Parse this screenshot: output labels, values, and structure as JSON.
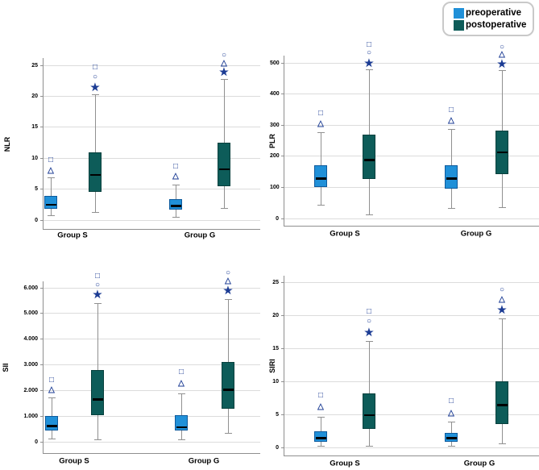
{
  "figure": {
    "background": "#ffffff"
  },
  "legend": {
    "position": "top-right",
    "items": [
      {
        "label": "preoperative",
        "color": "#2090d8",
        "border_color": "#0e5a9c"
      },
      {
        "label": "postoperative",
        "color": "#0d5c59",
        "border_color": "#07403d"
      }
    ]
  },
  "colors": {
    "outlier_symbol": "#1c3c94",
    "median_line": "#000000",
    "gridline": "#dcdcdc",
    "axis_line": "#8f8f8f",
    "whisker": "#909090",
    "text": "#000000"
  },
  "chart_data": [
    {
      "id": "nlr",
      "type": "boxplot",
      "ylabel": "NLR",
      "categories": [
        "Group S",
        "Group G"
      ],
      "series_names": [
        "preoperative",
        "postoperative"
      ],
      "ylim": [
        0,
        25
      ],
      "grid": true,
      "yticks": [
        {
          "value": 0,
          "label": "0"
        },
        {
          "value": 5,
          "label": "5"
        },
        {
          "value": 10,
          "label": "10"
        },
        {
          "value": 15,
          "label": "15"
        },
        {
          "value": 20,
          "label": "20"
        },
        {
          "value": 25,
          "label": "25"
        }
      ],
      "boxes": [
        {
          "category": "Group S",
          "series": "preoperative",
          "whisker_low": 0.7,
          "q1": 1.8,
          "median": 2.5,
          "q3": 3.9,
          "whisker_high": 6.9,
          "outliers": [
            {
              "symbol": "triangle",
              "value": 8.0
            },
            {
              "symbol": "square",
              "value": 9.6
            }
          ]
        },
        {
          "category": "Group S",
          "series": "postoperative",
          "whisker_low": 1.2,
          "q1": 4.6,
          "median": 7.3,
          "q3": 11.0,
          "whisker_high": 20.3,
          "outliers": [
            {
              "symbol": "star",
              "value": 21.5
            },
            {
              "symbol": "circle",
              "value": 23.0
            },
            {
              "symbol": "square",
              "value": 24.6
            }
          ]
        },
        {
          "category": "Group G",
          "series": "preoperative",
          "whisker_low": 0.4,
          "q1": 1.7,
          "median": 2.3,
          "q3": 3.4,
          "whisker_high": 5.7,
          "outliers": [
            {
              "symbol": "triangle",
              "value": 7.0
            },
            {
              "symbol": "square",
              "value": 8.6
            }
          ]
        },
        {
          "category": "Group G",
          "series": "postoperative",
          "whisker_low": 1.9,
          "q1": 5.5,
          "median": 8.2,
          "q3": 12.5,
          "whisker_high": 22.7,
          "outliers": [
            {
              "symbol": "star",
              "value": 23.9
            },
            {
              "symbol": "triangle",
              "value": 25.3
            },
            {
              "symbol": "circle",
              "value": 26.5
            }
          ]
        }
      ]
    },
    {
      "id": "plr",
      "type": "boxplot",
      "ylabel": "PLR",
      "categories": [
        "Group S",
        "Group G"
      ],
      "series_names": [
        "preoperative",
        "postoperative"
      ],
      "ylim": [
        0,
        500
      ],
      "grid": true,
      "yticks": [
        {
          "value": 0,
          "label": "0"
        },
        {
          "value": 100,
          "label": "100"
        },
        {
          "value": 200,
          "label": "200"
        },
        {
          "value": 300,
          "label": "300"
        },
        {
          "value": 400,
          "label": "400"
        },
        {
          "value": 500,
          "label": "500"
        }
      ],
      "boxes": [
        {
          "category": "Group S",
          "series": "preoperative",
          "whisker_low": 43,
          "q1": 100,
          "median": 128,
          "q3": 170,
          "whisker_high": 277,
          "outliers": [
            {
              "symbol": "triangle",
              "value": 303
            },
            {
              "symbol": "square",
              "value": 337
            }
          ]
        },
        {
          "category": "Group S",
          "series": "postoperative",
          "whisker_low": 12,
          "q1": 128,
          "median": 188,
          "q3": 270,
          "whisker_high": 478,
          "outliers": [
            {
              "symbol": "star",
              "value": 500
            },
            {
              "symbol": "circle",
              "value": 532
            },
            {
              "symbol": "square",
              "value": 556
            }
          ]
        },
        {
          "category": "Group G",
          "series": "preoperative",
          "whisker_low": 33,
          "q1": 97,
          "median": 128,
          "q3": 172,
          "whisker_high": 287,
          "outliers": [
            {
              "symbol": "triangle",
              "value": 313
            },
            {
              "symbol": "square",
              "value": 348
            }
          ]
        },
        {
          "category": "Group G",
          "series": "postoperative",
          "whisker_low": 35,
          "q1": 143,
          "median": 212,
          "q3": 282,
          "whisker_high": 475,
          "outliers": [
            {
              "symbol": "star",
              "value": 497
            },
            {
              "symbol": "triangle",
              "value": 525
            },
            {
              "symbol": "circle",
              "value": 548
            }
          ]
        }
      ]
    },
    {
      "id": "sii",
      "type": "boxplot",
      "ylabel": "SII",
      "categories": [
        "Group S",
        "Group G"
      ],
      "series_names": [
        "preoperative",
        "postoperative"
      ],
      "ylim": [
        0,
        6000
      ],
      "grid": true,
      "yticks": [
        {
          "value": 0,
          "label": "0"
        },
        {
          "value": 1000,
          "label": "1.000"
        },
        {
          "value": 2000,
          "label": "2.000"
        },
        {
          "value": 3000,
          "label": "3.000"
        },
        {
          "value": 4000,
          "label": "4.000"
        },
        {
          "value": 5000,
          "label": "5.000"
        },
        {
          "value": 6000,
          "label": "6.000"
        }
      ],
      "boxes": [
        {
          "category": "Group S",
          "series": "preoperative",
          "whisker_low": 100,
          "q1": 450,
          "median": 620,
          "q3": 1000,
          "whisker_high": 1700,
          "outliers": [
            {
              "symbol": "triangle",
              "value": 2000
            },
            {
              "symbol": "square",
              "value": 2380
            }
          ]
        },
        {
          "category": "Group S",
          "series": "postoperative",
          "whisker_low": 80,
          "q1": 1050,
          "median": 1650,
          "q3": 2800,
          "whisker_high": 5400,
          "outliers": [
            {
              "symbol": "star",
              "value": 5750
            },
            {
              "symbol": "circle",
              "value": 6100
            },
            {
              "symbol": "square",
              "value": 6450
            }
          ]
        },
        {
          "category": "Group G",
          "series": "preoperative",
          "whisker_low": 90,
          "q1": 430,
          "median": 560,
          "q3": 1050,
          "whisker_high": 1880,
          "outliers": [
            {
              "symbol": "triangle",
              "value": 2250
            },
            {
              "symbol": "square",
              "value": 2700
            }
          ]
        },
        {
          "category": "Group G",
          "series": "postoperative",
          "whisker_low": 330,
          "q1": 1280,
          "median": 2020,
          "q3": 3120,
          "whisker_high": 5550,
          "outliers": [
            {
              "symbol": "star",
              "value": 5900
            },
            {
              "symbol": "triangle",
              "value": 6250
            },
            {
              "symbol": "circle",
              "value": 6550
            }
          ]
        }
      ]
    },
    {
      "id": "siri",
      "type": "boxplot",
      "ylabel": "SIRI",
      "categories": [
        "Group S",
        "Group G"
      ],
      "series_names": [
        "preoperative",
        "postoperative"
      ],
      "ylim": [
        0,
        25
      ],
      "grid": true,
      "yticks": [
        {
          "value": 0,
          "label": "0"
        },
        {
          "value": 5,
          "label": "5"
        },
        {
          "value": 10,
          "label": "10"
        },
        {
          "value": 15,
          "label": "15"
        },
        {
          "value": 20,
          "label": "20"
        },
        {
          "value": 25,
          "label": "25"
        }
      ],
      "boxes": [
        {
          "category": "Group S",
          "series": "preoperative",
          "whisker_low": 0.2,
          "q1": 0.8,
          "median": 1.4,
          "q3": 2.5,
          "whisker_high": 4.6,
          "outliers": [
            {
              "symbol": "triangle",
              "value": 6.1
            },
            {
              "symbol": "square",
              "value": 7.8
            }
          ]
        },
        {
          "category": "Group S",
          "series": "postoperative",
          "whisker_low": 0.2,
          "q1": 2.8,
          "median": 4.9,
          "q3": 8.2,
          "whisker_high": 16.0,
          "outliers": [
            {
              "symbol": "star",
              "value": 17.5
            },
            {
              "symbol": "circle",
              "value": 19.0
            },
            {
              "symbol": "square",
              "value": 20.5
            }
          ]
        },
        {
          "category": "Group G",
          "series": "preoperative",
          "whisker_low": 0.2,
          "q1": 0.8,
          "median": 1.4,
          "q3": 2.2,
          "whisker_high": 3.8,
          "outliers": [
            {
              "symbol": "triangle",
              "value": 5.1
            },
            {
              "symbol": "square",
              "value": 6.9
            }
          ]
        },
        {
          "category": "Group G",
          "series": "postoperative",
          "whisker_low": 0.6,
          "q1": 3.5,
          "median": 6.4,
          "q3": 10.0,
          "whisker_high": 19.5,
          "outliers": [
            {
              "symbol": "star",
              "value": 20.9
            },
            {
              "symbol": "triangle",
              "value": 22.3
            },
            {
              "symbol": "circle",
              "value": 23.8
            }
          ]
        }
      ]
    }
  ]
}
